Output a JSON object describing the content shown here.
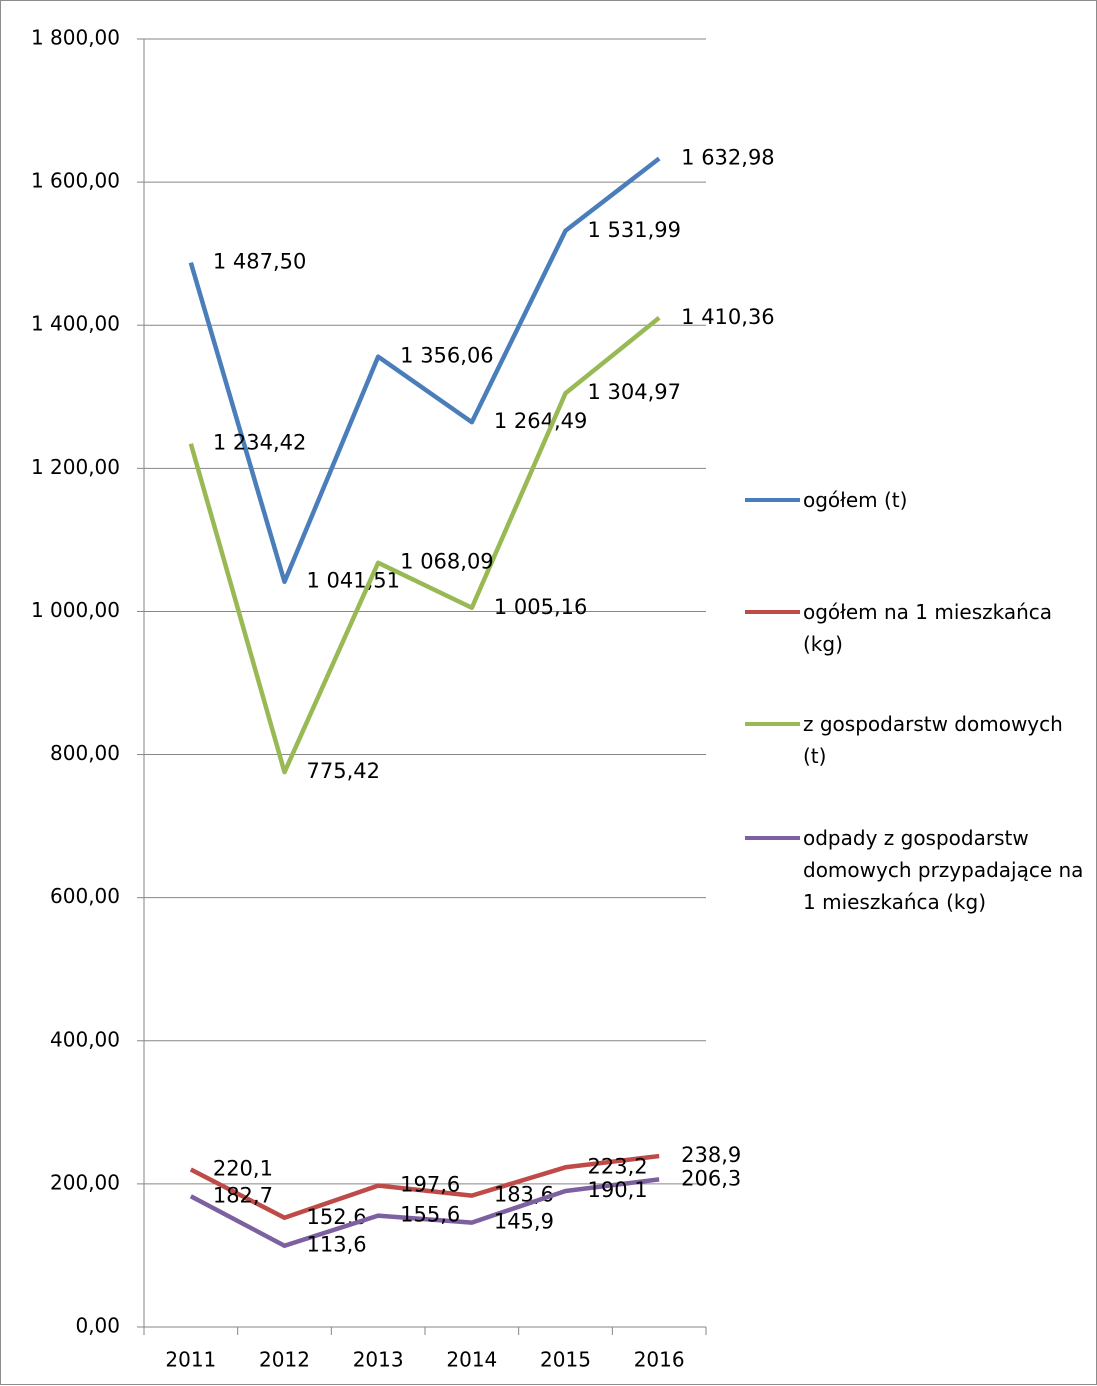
{
  "chart_data": {
    "type": "line",
    "categories": [
      "2011",
      "2012",
      "2013",
      "2014",
      "2015",
      "2016"
    ],
    "ylim": [
      0,
      1800
    ],
    "yticks": [
      {
        "value": 0,
        "label": "0,00"
      },
      {
        "value": 200,
        "label": "200,00"
      },
      {
        "value": 400,
        "label": "400,00"
      },
      {
        "value": 600,
        "label": "600,00"
      },
      {
        "value": 800,
        "label": "800,00"
      },
      {
        "value": 1000,
        "label": "1 000,00"
      },
      {
        "value": 1200,
        "label": "1 200,00"
      },
      {
        "value": 1400,
        "label": "1 400,00"
      },
      {
        "value": 1600,
        "label": "1 600,00"
      },
      {
        "value": 1800,
        "label": "1 800,00"
      }
    ],
    "grid": true,
    "legend": "right",
    "series": [
      {
        "name": "ogółem (t)",
        "color": "#4a7ebb",
        "values": [
          1487.5,
          1041.51,
          1356.06,
          1264.49,
          1531.99,
          1632.98
        ],
        "value_labels": [
          "1 487,50",
          "1 041,51",
          "1 356,06",
          "1 264,49",
          "1 531,99",
          "1 632,98"
        ]
      },
      {
        "name": "ogółem na 1 mieszkańca (kg)",
        "color": "#be4b48",
        "values": [
          220.1,
          152.6,
          197.6,
          183.6,
          223.2,
          238.9
        ],
        "value_labels": [
          "220,1",
          "152,6",
          "197,6",
          "183,6",
          "223,2",
          "238,9"
        ]
      },
      {
        "name": "z gospodarstw domowych (t)",
        "color": "#98b954",
        "values": [
          1234.42,
          775.42,
          1068.09,
          1005.16,
          1304.97,
          1410.36
        ],
        "value_labels": [
          "1 234,42",
          "775,42",
          "1 068,09",
          "1 005,16",
          "1 304,97",
          "1 410,36"
        ]
      },
      {
        "name": "odpady z gospodarstw domowych przypadające na 1 mieszkańca (kg)",
        "color": "#7d60a0",
        "values": [
          182.7,
          113.6,
          155.6,
          145.9,
          190.1,
          206.3
        ],
        "value_labels": [
          "182,7",
          "113,6",
          "155,6",
          "145,9",
          "190,1",
          "206,3"
        ]
      }
    ]
  }
}
